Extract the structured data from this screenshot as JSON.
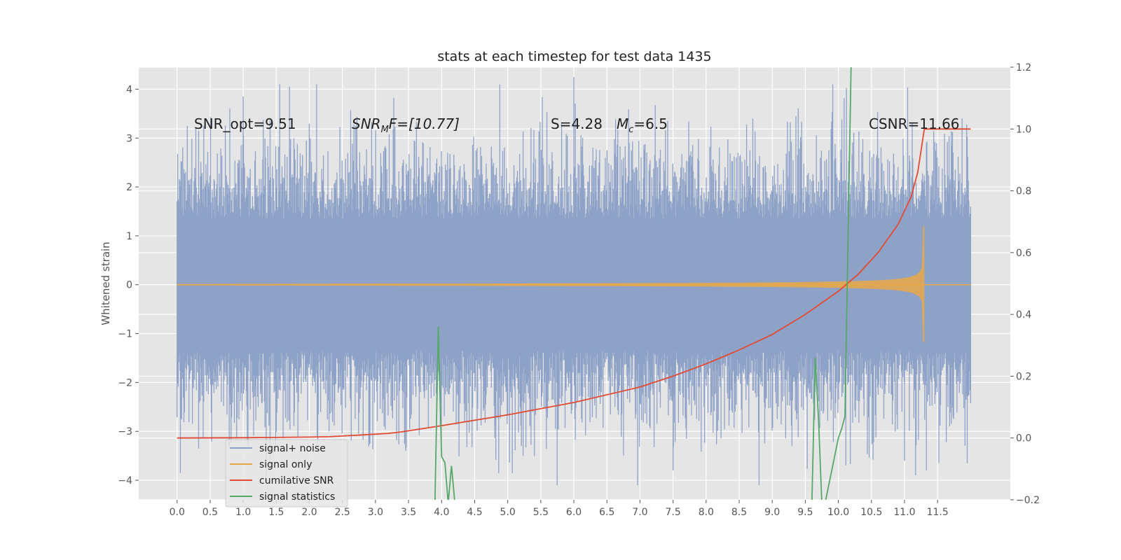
{
  "chart_data": {
    "type": "line",
    "title": "stats at each timestep for test data 1435",
    "ylabel": "Whitened strain",
    "xlim": [
      -0.58,
      12.6
    ],
    "ylim": [
      -4.4,
      4.45
    ],
    "ylim_right": [
      -0.2,
      1.2
    ],
    "grid": true,
    "legend_position": "lower-left",
    "x_ticks": [
      "0.0",
      "0.5",
      "1.0",
      "1.5",
      "2.0",
      "2.5",
      "3.0",
      "3.5",
      "4.0",
      "4.5",
      "5.0",
      "5.5",
      "6.0",
      "6.5",
      "7.0",
      "7.5",
      "8.0",
      "8.5",
      "9.0",
      "9.5",
      "10.0",
      "10.5",
      "11.0",
      "11.5"
    ],
    "y_ticks_left": [
      "−4",
      "−3",
      "−2",
      "−1",
      "0",
      "1",
      "2",
      "3",
      "4"
    ],
    "y_ticks_right": [
      "−0.2",
      "0.0",
      "0.2",
      "0.4",
      "0.6",
      "0.8",
      "1.0",
      "1.2"
    ],
    "annotations": {
      "snr_opt": "SNR_opt=9.51",
      "snr_mf_main": "SNR",
      "snr_mf_sub": "M",
      "snr_mf_rest": "F=[10.77]",
      "s_stat": "S=4.28",
      "mc_main": "M",
      "mc_sub": "c",
      "mc_rest": "=6.5",
      "csnr": "CSNR=11.66"
    },
    "colors": {
      "signal_noise": "#8ea2c8",
      "signal_only": "#e8a848",
      "cumulative_snr": "#e24a33",
      "signal_statistics": "#55a868",
      "plot_bg": "#e5e5e5",
      "grid": "#ffffff"
    },
    "series": [
      {
        "name": "signal+ noise",
        "axis": "left",
        "x_range": [
          0.0,
          12.0
        ],
        "amplitude_typical": 2.0,
        "amplitude_max": 4.1
      },
      {
        "name": "signal only",
        "axis": "left",
        "x_range": [
          0.0,
          12.0
        ],
        "peak_time": 11.3,
        "peak_amplitude": 1.2
      },
      {
        "name": "cumilative SNR",
        "axis": "right",
        "x": [
          0.0,
          1.0,
          2.0,
          2.3,
          2.8,
          3.2,
          3.4,
          4.0,
          5.0,
          6.0,
          7.0,
          7.5,
          8.0,
          8.5,
          9.0,
          9.5,
          10.0,
          10.3,
          10.6,
          10.9,
          11.1,
          11.2,
          11.3,
          11.5,
          12.0
        ],
        "values": [
          0.0,
          0.001,
          0.003,
          0.004,
          0.01,
          0.015,
          0.02,
          0.04,
          0.075,
          0.115,
          0.165,
          0.2,
          0.24,
          0.285,
          0.335,
          0.4,
          0.475,
          0.53,
          0.6,
          0.69,
          0.78,
          0.86,
          1.0,
          1.0,
          1.0
        ]
      },
      {
        "name": "signal statistics",
        "axis": "right",
        "x": [
          3.9,
          3.95,
          4.0,
          4.05,
          4.1,
          4.15,
          4.2,
          4.25,
          9.6,
          9.65,
          9.7,
          9.75,
          9.8,
          10.0,
          10.05,
          10.1,
          10.2,
          10.3,
          10.6
        ],
        "values": [
          -0.21,
          0.36,
          -0.06,
          -0.08,
          -0.21,
          -0.09,
          -0.21,
          -0.21,
          -0.21,
          0.26,
          0.06,
          -0.21,
          -0.21,
          0.0,
          0.03,
          0.07,
          1.3,
          1.3,
          1.3
        ]
      }
    ]
  }
}
